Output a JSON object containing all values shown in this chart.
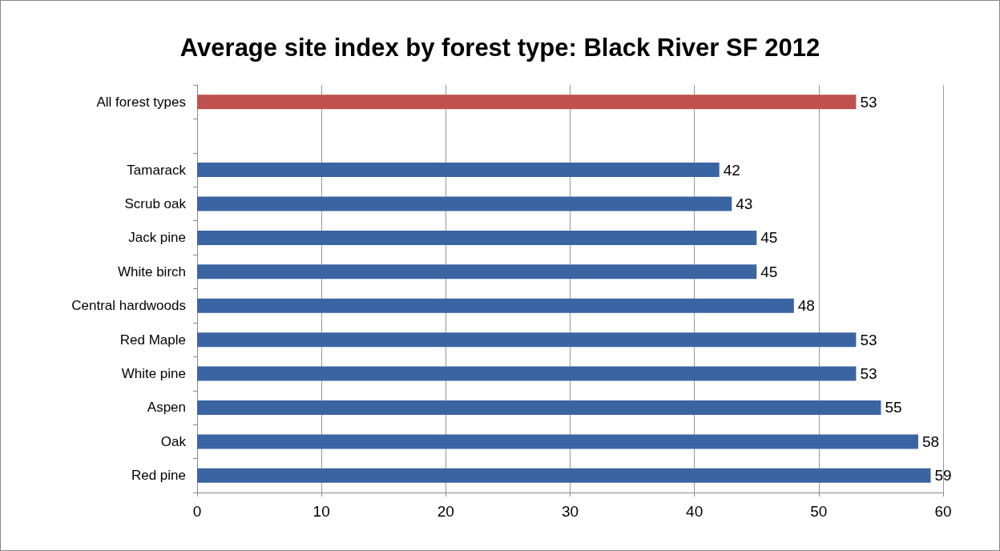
{
  "chart_data": {
    "type": "bar",
    "orientation": "horizontal",
    "title": "Average site index by forest type: Black River SF 2012",
    "categories": [
      "All forest types",
      null,
      "Tamarack",
      "Scrub oak",
      "Jack pine",
      "White birch",
      "Central hardwoods",
      "Red Maple",
      "White pine",
      "Aspen",
      "Oak",
      "Red pine"
    ],
    "values": [
      53,
      null,
      42,
      43,
      45,
      45,
      48,
      53,
      53,
      55,
      58,
      59
    ],
    "colors": [
      "#c0504d",
      null,
      "#3b64a2",
      "#3b64a2",
      "#3b64a2",
      "#3b64a2",
      "#3b64a2",
      "#3b64a2",
      "#3b64a2",
      "#3b64a2",
      "#3b64a2",
      "#3b64a2"
    ],
    "xlim": [
      0,
      60
    ],
    "xticks": [
      0,
      10,
      20,
      30,
      40,
      50,
      60
    ],
    "grid": "x",
    "data_labels": true
  }
}
